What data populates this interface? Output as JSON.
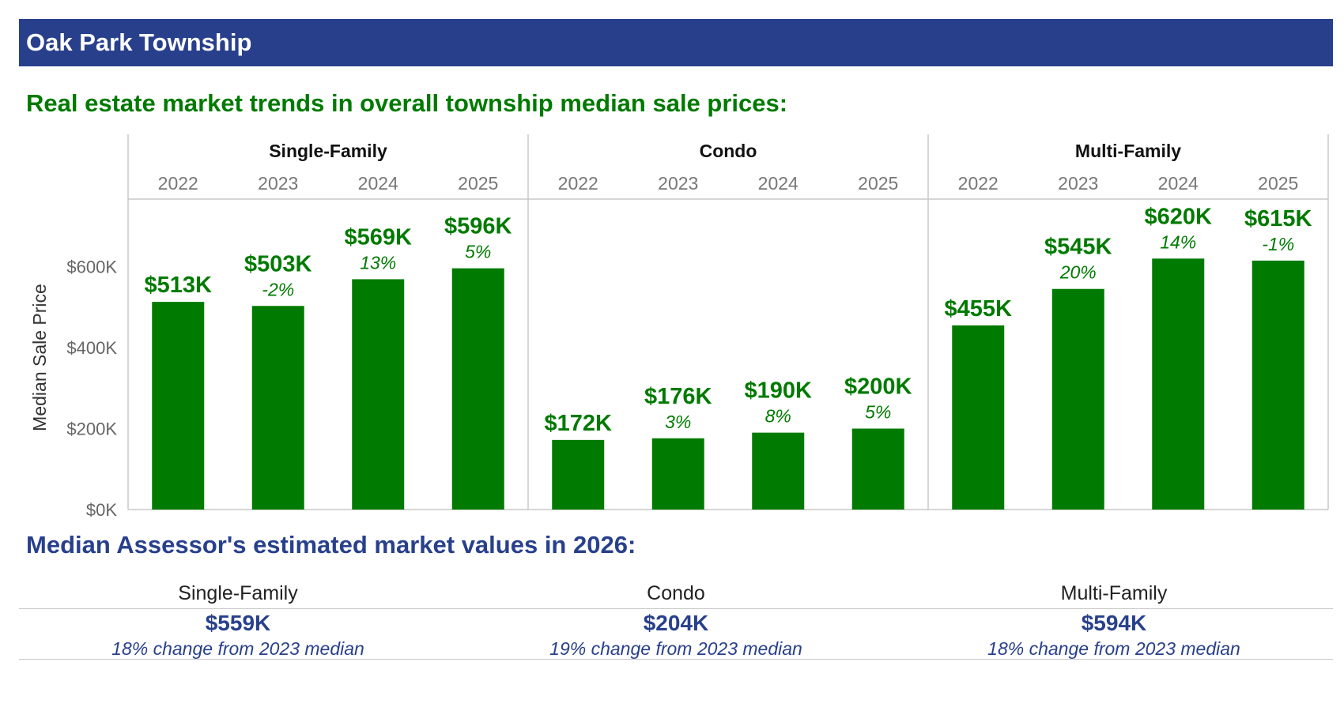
{
  "header": {
    "title": "Oak Park Township"
  },
  "trends": {
    "heading": "Real estate market trends in overall township median sale prices:"
  },
  "assessor": {
    "heading": "Median Assessor's estimated market values in 2026:"
  },
  "colors": {
    "bar": "#007a00",
    "label": "#007a00",
    "banner": "#28408c",
    "assessor": "#28408c"
  },
  "chart_data": {
    "type": "bar",
    "ylabel": "Median Sale Price",
    "ylim": [
      0,
      767
    ],
    "yticks": [
      0,
      200,
      400,
      600
    ],
    "ytick_labels": [
      "$0K",
      "$200K",
      "$400K",
      "$600K"
    ],
    "grid": false,
    "panels": [
      {
        "name": "Single-Family",
        "categories": [
          "2022",
          "2023",
          "2024",
          "2025"
        ],
        "values": [
          513,
          503,
          569,
          596
        ],
        "value_labels": [
          "$513K",
          "$503K",
          "$569K",
          "$596K"
        ],
        "changes": [
          "",
          "-2%",
          "13%",
          "5%"
        ]
      },
      {
        "name": "Condo",
        "categories": [
          "2022",
          "2023",
          "2024",
          "2025"
        ],
        "values": [
          172,
          176,
          190,
          200
        ],
        "value_labels": [
          "$172K",
          "$176K",
          "$190K",
          "$200K"
        ],
        "changes": [
          "",
          "3%",
          "8%",
          "5%"
        ]
      },
      {
        "name": "Multi-Family",
        "categories": [
          "2022",
          "2023",
          "2024",
          "2025"
        ],
        "values": [
          455,
          545,
          620,
          615
        ],
        "value_labels": [
          "$455K",
          "$545K",
          "$620K",
          "$615K"
        ],
        "changes": [
          "",
          "20%",
          "14%",
          "-1%"
        ]
      }
    ]
  },
  "market_values": [
    {
      "label": "Single-Family",
      "value": "$559K",
      "change": "18% change from 2023 median"
    },
    {
      "label": "Condo",
      "value": "$204K",
      "change": "19% change from 2023 median"
    },
    {
      "label": "Multi-Family",
      "value": "$594K",
      "change": "18% change from 2023 median"
    }
  ]
}
